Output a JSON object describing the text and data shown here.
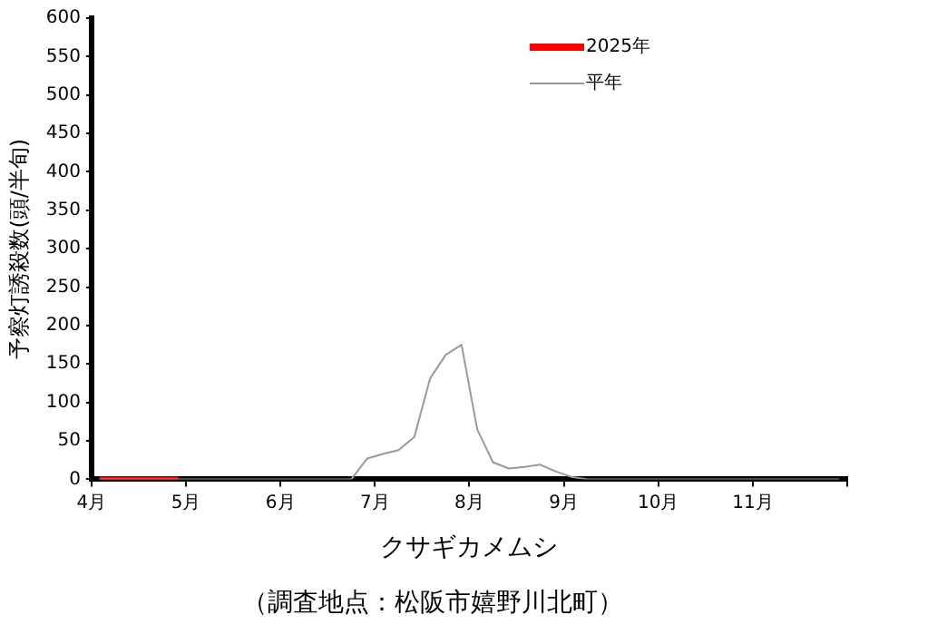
{
  "chart_data": {
    "type": "line",
    "xlabel": "クサギカメムシ",
    "ylabel": "予察灯誘殺数(頭/半旬)",
    "annotations": [
      "（調査地点：松阪市嬉野川北町）"
    ],
    "xlim": [
      4,
      12
    ],
    "xticks": [
      {
        "value": 4,
        "label": "4月"
      },
      {
        "value": 5,
        "label": "5月"
      },
      {
        "value": 6,
        "label": "6月"
      },
      {
        "value": 7,
        "label": "7月"
      },
      {
        "value": 8,
        "label": "8月"
      },
      {
        "value": 9,
        "label": "9月"
      },
      {
        "value": 10,
        "label": "10月"
      },
      {
        "value": 11,
        "label": "11月"
      },
      {
        "value": 12,
        "label": null
      }
    ],
    "ylim": [
      0,
      600
    ],
    "yticks": [
      0,
      50,
      100,
      150,
      200,
      250,
      300,
      350,
      400,
      450,
      500,
      550,
      600
    ],
    "x": [
      4.083,
      4.25,
      4.417,
      4.583,
      4.75,
      4.917,
      5.083,
      5.25,
      5.417,
      5.583,
      5.75,
      5.917,
      6.083,
      6.25,
      6.417,
      6.583,
      6.75,
      6.917,
      7.083,
      7.25,
      7.417,
      7.583,
      7.75,
      7.917,
      8.083,
      8.25,
      8.417,
      8.583,
      8.75,
      8.917,
      9.083,
      9.25,
      9.417,
      9.583,
      9.75,
      9.917,
      10.083,
      10.25,
      10.417,
      10.583,
      10.75,
      10.917,
      11.083,
      11.25,
      11.417,
      11.583,
      11.75,
      11.917
    ],
    "series": [
      {
        "name": "2025年",
        "color": "#ff0000",
        "values": [
          0,
          0,
          0,
          0,
          0,
          0,
          null,
          null,
          null,
          null,
          null,
          null,
          null,
          null,
          null,
          null,
          null,
          null,
          null,
          null,
          null,
          null,
          null,
          null,
          null,
          null,
          null,
          null,
          null,
          null,
          null,
          null,
          null,
          null,
          null,
          null,
          null,
          null,
          null,
          null,
          null,
          null,
          null,
          null,
          null,
          null,
          null,
          null
        ]
      },
      {
        "name": "平年",
        "color": "#999999",
        "values": [
          0,
          0,
          0,
          0,
          0,
          0,
          0,
          0,
          0,
          0,
          0,
          0,
          0,
          0,
          0,
          0,
          0,
          27,
          33,
          38,
          55,
          131,
          162,
          175,
          65,
          22,
          14,
          16,
          19,
          10,
          3,
          0,
          0,
          0,
          0,
          0,
          0,
          0,
          0,
          0,
          0,
          0,
          0,
          0,
          0,
          0,
          0,
          0
        ]
      }
    ],
    "grid": false,
    "legend": "top right",
    "marker": "none",
    "line_style": "solid"
  }
}
